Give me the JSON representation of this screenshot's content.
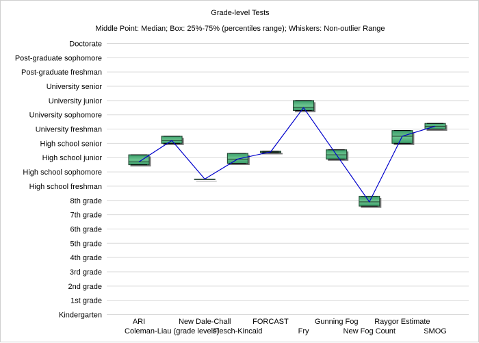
{
  "colors": {
    "box_fill": "#3a9d6a",
    "box_fill_light": "#6cc48f",
    "box_stroke": "#1f3d2c",
    "shadow": "#7a7a7a",
    "median_line": "#0000cc",
    "grid": "#d9d9d9",
    "background": "#ffffff"
  },
  "chart_data": {
    "type": "box",
    "title": "Grade-level Tests",
    "subtitle": "Middle Point: Median; Box: 25%-75% (percentiles range); Whiskers: Non-outlier Range",
    "xlabel": "",
    "ylabel": "",
    "grid": true,
    "y_ticks": [
      "Kindergarten",
      "1st grade",
      "2nd grade",
      "3rd grade",
      "4th grade",
      "5th grade",
      "6th grade",
      "7th grade",
      "8th grade",
      "High school freshman",
      "High school sophomore",
      "High school junior",
      "High school senior",
      "University freshman",
      "University sophomore",
      "University junior",
      "University senior",
      "Post-graduate freshman",
      "Post-graduate sophomore",
      "Doctorate"
    ],
    "ylim": [
      0,
      19
    ],
    "categories": [
      "ARI",
      "Coleman-Liau (grade levels)",
      "New Dale-Chall",
      "Flesch-Kincaid",
      "FORCAST",
      "Fry",
      "Gunning Fog",
      "New Fog Count",
      "Raygor Estimate",
      "SMOG"
    ],
    "series": [
      {
        "median": [
          10.7,
          12.2,
          9.5,
          10.9,
          11.4,
          14.5,
          11.2,
          7.9,
          12.5,
          13.2
        ],
        "q1": [
          10.5,
          12.0,
          9.5,
          10.6,
          11.35,
          14.3,
          10.9,
          7.6,
          12.0,
          13.0
        ],
        "q3": [
          11.2,
          12.5,
          9.5,
          11.3,
          11.45,
          15.0,
          11.55,
          8.3,
          12.9,
          13.4
        ],
        "whisker_low": [
          10.5,
          12.0,
          9.5,
          10.6,
          11.35,
          14.3,
          10.9,
          7.6,
          12.0,
          13.0
        ],
        "whisker_high": [
          11.2,
          12.5,
          9.5,
          11.3,
          11.45,
          15.0,
          11.55,
          8.3,
          12.9,
          13.4
        ]
      }
    ]
  }
}
